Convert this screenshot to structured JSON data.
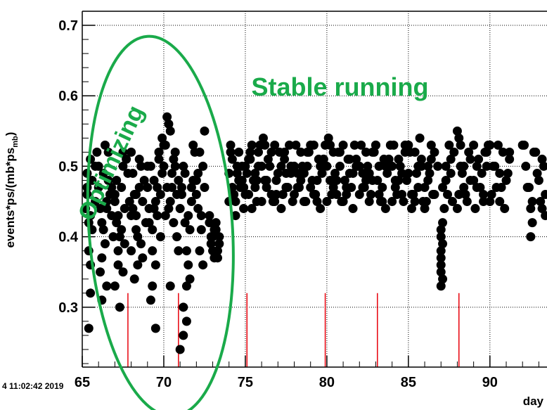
{
  "chart_data": {
    "type": "scatter",
    "title": "",
    "xlabel": "day",
    "ylabel": "events*ps/(mb*ps",
    "ylabel_sub": "mb",
    "ylabel_close": ")",
    "xlim": [
      65,
      93.5
    ],
    "ylim": [
      0.215,
      0.72
    ],
    "x_ticks": [
      65,
      70,
      75,
      80,
      85,
      90
    ],
    "x_tick_labels": [
      "65",
      "70",
      "75",
      "80",
      "85",
      "90"
    ],
    "y_ticks": [
      0.3,
      0.4,
      0.5,
      0.6,
      0.7
    ],
    "y_tick_labels": [
      "0.3",
      "0.4",
      "0.5",
      "0.6",
      "0.7"
    ],
    "grid": true,
    "timestamp": "4 11:02:42 2019",
    "marker_color": "#000000",
    "marker_lines": {
      "color": "#e8000b",
      "x": [
        67.8,
        70.9,
        75.1,
        79.9,
        83.1,
        88.1
      ],
      "y_top": 0.32
    },
    "annotations": [
      {
        "text": "Stable running",
        "x": 80.8,
        "y": 0.6,
        "color": "#1aaa4a"
      },
      {
        "text": "Optimizing",
        "x": 67.2,
        "y": 0.5,
        "rotation": -65,
        "color": "#1aaa4a"
      }
    ],
    "highlight_ellipse": {
      "cx": 69.8,
      "cy": 0.415,
      "rx": 4.4,
      "ry": 0.27,
      "color": "#1aaa4a"
    },
    "series": [
      {
        "x": [
          65.2,
          65.3,
          65.4,
          65.6,
          65.8,
          65.4,
          65.5,
          65.9,
          65.5,
          65.3,
          65.6,
          65.8,
          65.5,
          65.4,
          65.3,
          65.5,
          66.0,
          66.1,
          66.2,
          66.4,
          66.5,
          66.6,
          66.3,
          66.2,
          66.5,
          66.0,
          66.4,
          66.7,
          66.8,
          66.9,
          66.6,
          66.3,
          66.1,
          66.2,
          66.8,
          66.5,
          67.0,
          67.1,
          67.2,
          67.3,
          67.4,
          67.5,
          67.6,
          67.2,
          67.0,
          67.3,
          67.1,
          67.4,
          67.5,
          67.0,
          67.2,
          67.8,
          67.6,
          67.9,
          67.7,
          67.5,
          68.0,
          68.1,
          68.2,
          68.3,
          68.4,
          68.5,
          68.6,
          68.1,
          68.3,
          68.0,
          68.4,
          68.2,
          68.7,
          68.8,
          68.5,
          68.9,
          68.6,
          68.3,
          68.0,
          68.7,
          69.0,
          69.1,
          69.2,
          69.3,
          69.4,
          69.5,
          69.6,
          69.7,
          69.8,
          69.9,
          69.1,
          69.3,
          69.5,
          69.2,
          69.8,
          69.6,
          69.4,
          69.7,
          69.9,
          69.0,
          69.5,
          69.3,
          70.0,
          70.1,
          70.2,
          70.3,
          70.4,
          70.5,
          70.6,
          70.7,
          70.8,
          70.9,
          70.2,
          70.4,
          70.6,
          70.1,
          70.3,
          70.5,
          70.8,
          70.7,
          70.0,
          70.9,
          70.4,
          71.0,
          71.1,
          71.2,
          71.3,
          71.4,
          71.5,
          71.6,
          71.7,
          71.8,
          71.9,
          71.2,
          71.4,
          71.6,
          71.1,
          71.3,
          71.5,
          71.8,
          71.0,
          71.2,
          71.4,
          71.7,
          72.0,
          72.1,
          72.2,
          72.3,
          72.4,
          72.5,
          72.1,
          72.3,
          72.5,
          72.2,
          72.4,
          72.0,
          72.8,
          72.9,
          73.0,
          73.1,
          73.2,
          73.3,
          73.4,
          72.8,
          73.0,
          73.2,
          73.4,
          73.1,
          72.9,
          73.3,
          74.0,
          74.2,
          74.4,
          74.6,
          74.8,
          75.0,
          75.2,
          75.4,
          75.6,
          75.8,
          74.1,
          74.3,
          74.5,
          74.7,
          74.9,
          75.1,
          75.3,
          75.5,
          75.7,
          75.9,
          74.0,
          74.2,
          74.4,
          74.6,
          74.8,
          75.0,
          75.2,
          75.4,
          75.6,
          75.8,
          74.1,
          74.5,
          74.9,
          75.3,
          75.7,
          76.0,
          76.2,
          76.4,
          76.6,
          76.8,
          77.0,
          77.2,
          77.4,
          77.6,
          77.8,
          76.1,
          76.3,
          76.5,
          76.7,
          76.9,
          77.1,
          77.3,
          77.5,
          77.7,
          77.9,
          76.0,
          76.3,
          76.6,
          76.9,
          77.2,
          77.5,
          77.8,
          76.2,
          76.8,
          77.4,
          78.0,
          78.2,
          78.4,
          78.6,
          78.8,
          79.0,
          79.2,
          79.4,
          79.6,
          79.8,
          78.1,
          78.3,
          78.5,
          78.7,
          78.9,
          79.1,
          79.3,
          79.5,
          79.7,
          79.9,
          78.0,
          78.4,
          78.8,
          79.2,
          79.6,
          78.2,
          78.6,
          79.0,
          79.4,
          79.8,
          80.0,
          80.2,
          80.4,
          80.6,
          80.8,
          81.0,
          81.2,
          81.4,
          81.6,
          81.8,
          80.1,
          80.3,
          80.5,
          80.7,
          80.9,
          81.1,
          81.3,
          81.5,
          81.7,
          81.9,
          80.0,
          80.4,
          80.8,
          81.2,
          81.6,
          80.2,
          80.6,
          81.0,
          81.4,
          81.8,
          82.0,
          82.2,
          82.4,
          82.6,
          82.8,
          83.0,
          83.2,
          83.4,
          83.6,
          83.8,
          82.1,
          82.3,
          82.5,
          82.7,
          82.9,
          83.1,
          83.3,
          83.5,
          83.7,
          83.9,
          82.0,
          82.4,
          82.8,
          83.2,
          83.6,
          82.2,
          82.6,
          83.0,
          83.4,
          83.8,
          84.0,
          84.2,
          84.4,
          84.6,
          84.8,
          85.0,
          85.2,
          85.4,
          85.6,
          85.8,
          84.1,
          84.3,
          84.5,
          84.7,
          84.9,
          85.1,
          85.3,
          85.5,
          85.7,
          85.9,
          84.0,
          84.4,
          84.8,
          85.2,
          85.6,
          84.2,
          84.6,
          85.0,
          85.4,
          85.8,
          86.0,
          86.2,
          86.4,
          86.6,
          86.0,
          86.3,
          86.6,
          86.1,
          86.4,
          86.2,
          86.5,
          86.8,
          87.0,
          87.0,
          87.0,
          87.0,
          87.0,
          87.1,
          87.1,
          87.0,
          87.0,
          87.1,
          87.2,
          87.1,
          87.3,
          87.4,
          87.6,
          87.8,
          87.5,
          87.7,
          87.3,
          87.6,
          88.0,
          88.1,
          88.2,
          88.4,
          88.6,
          88.8,
          88.2,
          88.5,
          88.8,
          88.0,
          88.3,
          88.7,
          88.1,
          88.4,
          89.0,
          89.2,
          89.4,
          89.6,
          89.8,
          89.0,
          89.3,
          89.6,
          89.9,
          89.1,
          89.5,
          89.8,
          89.2,
          89.7,
          90.0,
          90.2,
          90.4,
          90.6,
          90.8,
          91.0,
          91.2,
          90.1,
          90.5,
          90.9,
          91.1,
          90.3,
          90.7,
          91.2,
          90.0,
          90.6,
          92.0,
          92.2,
          92.4,
          92.6,
          92.8,
          93.0,
          93.2,
          93.4,
          92.1,
          92.5,
          92.9,
          93.3,
          92.3,
          92.7,
          93.1,
          93.4,
          92.6,
          92.5,
          93.2
        ],
        "y": [
          0.44,
          0.46,
          0.42,
          0.48,
          0.5,
          0.38,
          0.36,
          0.52,
          0.43,
          0.47,
          0.41,
          0.45,
          0.32,
          0.27,
          0.49,
          0.51,
          0.47,
          0.44,
          0.42,
          0.39,
          0.45,
          0.48,
          0.41,
          0.37,
          0.33,
          0.5,
          0.53,
          0.46,
          0.43,
          0.4,
          0.52,
          0.49,
          0.35,
          0.31,
          0.47,
          0.44,
          0.45,
          0.42,
          0.38,
          0.4,
          0.47,
          0.5,
          0.44,
          0.36,
          0.33,
          0.3,
          0.48,
          0.41,
          0.52,
          0.46,
          0.43,
          0.49,
          0.39,
          0.45,
          0.51,
          0.35,
          0.52,
          0.49,
          0.46,
          0.43,
          0.4,
          0.47,
          0.5,
          0.44,
          0.41,
          0.38,
          0.36,
          0.34,
          0.45,
          0.48,
          0.51,
          0.42,
          0.39,
          0.46,
          0.43,
          0.37,
          0.47,
          0.44,
          0.5,
          0.41,
          0.48,
          0.45,
          0.43,
          0.52,
          0.46,
          0.49,
          0.42,
          0.38,
          0.36,
          0.31,
          0.4,
          0.47,
          0.44,
          0.51,
          0.54,
          0.5,
          0.27,
          0.33,
          0.5,
          0.53,
          0.47,
          0.56,
          0.45,
          0.49,
          0.42,
          0.52,
          0.46,
          0.48,
          0.57,
          0.55,
          0.51,
          0.43,
          0.44,
          0.47,
          0.4,
          0.5,
          0.53,
          0.38,
          0.33,
          0.44,
          0.47,
          0.5,
          0.42,
          0.38,
          0.36,
          0.34,
          0.45,
          0.48,
          0.52,
          0.3,
          0.28,
          0.41,
          0.46,
          0.49,
          0.43,
          0.53,
          0.24,
          0.26,
          0.33,
          0.47,
          0.46,
          0.49,
          0.52,
          0.43,
          0.5,
          0.47,
          0.44,
          0.41,
          0.55,
          0.38,
          0.36,
          0.48,
          0.42,
          0.39,
          0.4,
          0.37,
          0.41,
          0.38,
          0.4,
          0.43,
          0.38,
          0.42,
          0.39,
          0.41,
          0.4,
          0.37,
          0.45,
          0.47,
          0.43,
          0.48,
          0.5,
          0.46,
          0.51,
          0.44,
          0.49,
          0.52,
          0.53,
          0.46,
          0.5,
          0.47,
          0.44,
          0.49,
          0.52,
          0.48,
          0.45,
          0.53,
          0.49,
          0.51,
          0.45,
          0.52,
          0.48,
          0.5,
          0.46,
          0.53,
          0.47,
          0.5,
          0.52,
          0.49,
          0.47,
          0.51,
          0.48,
          0.45,
          0.48,
          0.51,
          0.46,
          0.53,
          0.49,
          0.44,
          0.52,
          0.47,
          0.5,
          0.54,
          0.47,
          0.5,
          0.45,
          0.48,
          0.52,
          0.46,
          0.49,
          0.53,
          0.45,
          0.5,
          0.48,
          0.52,
          0.46,
          0.5,
          0.47,
          0.49,
          0.53,
          0.45,
          0.51,
          0.46,
          0.49,
          0.52,
          0.45,
          0.5,
          0.47,
          0.53,
          0.48,
          0.44,
          0.51,
          0.53,
          0.47,
          0.5,
          0.45,
          0.52,
          0.48,
          0.46,
          0.51,
          0.49,
          0.53,
          0.5,
          0.48,
          0.52,
          0.46,
          0.5,
          0.47,
          0.49,
          0.53,
          0.45,
          0.51,
          0.45,
          0.48,
          0.52,
          0.46,
          0.5,
          0.53,
          0.47,
          0.49,
          0.44,
          0.51,
          0.54,
          0.46,
          0.49,
          0.52,
          0.45,
          0.48,
          0.51,
          0.47,
          0.53,
          0.5,
          0.5,
          0.47,
          0.52,
          0.46,
          0.49,
          0.53,
          0.48,
          0.45,
          0.51,
          0.5,
          0.46,
          0.49,
          0.52,
          0.45,
          0.48,
          0.53,
          0.5,
          0.47,
          0.44,
          0.51,
          0.53,
          0.47,
          0.5,
          0.46,
          0.52,
          0.48,
          0.45,
          0.51,
          0.49,
          0.53,
          0.5,
          0.48,
          0.52,
          0.46,
          0.5,
          0.47,
          0.49,
          0.53,
          0.45,
          0.51,
          0.45,
          0.48,
          0.51,
          0.46,
          0.53,
          0.49,
          0.44,
          0.52,
          0.47,
          0.5,
          0.53,
          0.46,
          0.5,
          0.45,
          0.48,
          0.52,
          0.46,
          0.49,
          0.54,
          0.45,
          0.5,
          0.48,
          0.52,
          0.46,
          0.5,
          0.47,
          0.49,
          0.53,
          0.45,
          0.51,
          0.47,
          0.5,
          0.53,
          0.46,
          0.44,
          0.49,
          0.52,
          0.45,
          0.51,
          0.48,
          0.46,
          0.5,
          0.4,
          0.38,
          0.36,
          0.37,
          0.35,
          0.34,
          0.39,
          0.41,
          0.33,
          0.42,
          0.44,
          0.47,
          0.5,
          0.46,
          0.49,
          0.52,
          0.53,
          0.45,
          0.48,
          0.51,
          0.55,
          0.54,
          0.5,
          0.47,
          0.45,
          0.48,
          0.53,
          0.46,
          0.51,
          0.44,
          0.49,
          0.52,
          0.46,
          0.5,
          0.53,
          0.5,
          0.47,
          0.45,
          0.52,
          0.48,
          0.51,
          0.46,
          0.53,
          0.44,
          0.49,
          0.5,
          0.47,
          0.52,
          0.53,
          0.5,
          0.47,
          0.45,
          0.52,
          0.48,
          0.51,
          0.46,
          0.53,
          0.44,
          0.49,
          0.5,
          0.47,
          0.52,
          0.45,
          0.49,
          0.53,
          0.5,
          0.47,
          0.45,
          0.52,
          0.48,
          0.51,
          0.46,
          0.53,
          0.44,
          0.49,
          0.5,
          0.47,
          0.52,
          0.45,
          0.43,
          0.42,
          0.4,
          0.44
        ]
      }
    ]
  }
}
